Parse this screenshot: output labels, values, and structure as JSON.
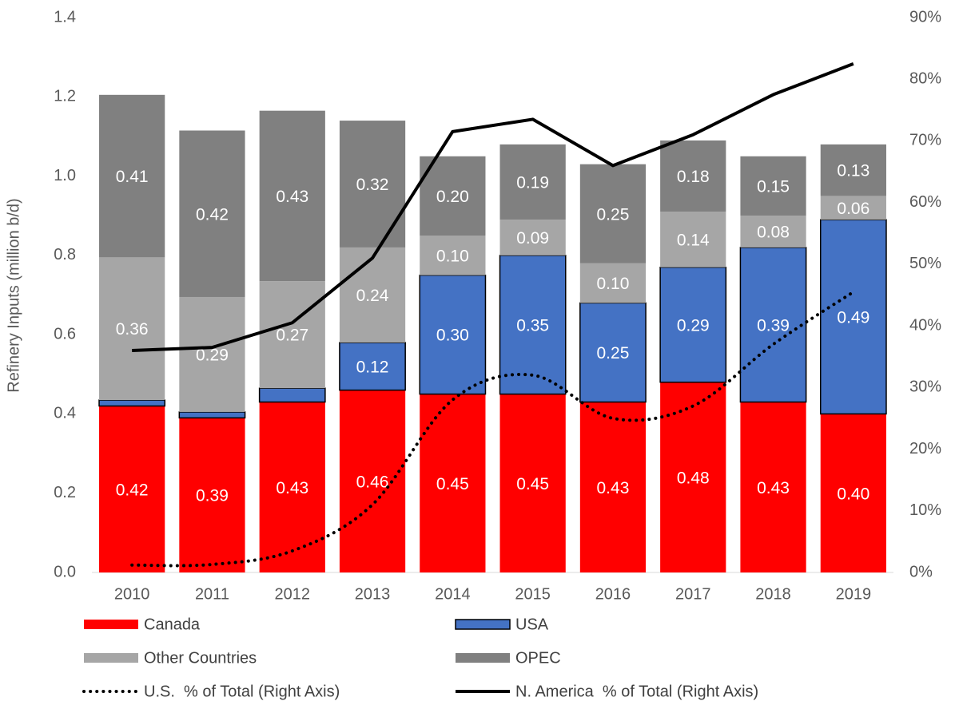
{
  "chart_data": {
    "type": "bar",
    "stacked": true,
    "y_label": "Refinery Inputs (million b/d)",
    "categories": [
      "2010",
      "2011",
      "2012",
      "2013",
      "2014",
      "2015",
      "2016",
      "2017",
      "2018",
      "2019"
    ],
    "ylim": [
      0,
      1.4
    ],
    "yticks": [
      {
        "value": 0,
        "label": "0.0"
      },
      0.2,
      0.4,
      0.6,
      0.8,
      {
        "value": 1,
        "label": "1.0"
      },
      1.2,
      1.4
    ],
    "y2lim": [
      0,
      90
    ],
    "y2ticks": [
      {
        "value": 0,
        "label": "0%"
      },
      {
        "value": 10,
        "label": "10%"
      },
      {
        "value": 20,
        "label": "20%"
      },
      {
        "value": 30,
        "label": "30%"
      },
      {
        "value": 40,
        "label": "40%"
      },
      {
        "value": 50,
        "label": "50%"
      },
      {
        "value": 60,
        "label": "60%"
      },
      {
        "value": 70,
        "label": "70%"
      },
      {
        "value": 80,
        "label": "80%"
      },
      {
        "value": 90,
        "label": "90%"
      }
    ],
    "series": [
      {
        "name": "Canada",
        "color": "#ff0000",
        "values": [
          0.42,
          0.39,
          0.43,
          0.46,
          0.45,
          0.45,
          0.43,
          0.48,
          0.43,
          0.4
        ],
        "value_labels": [
          "0.42",
          "0.39",
          "0.43",
          "0.46",
          "0.45",
          "0.45",
          "0.43",
          "0.48",
          "0.43",
          "0.40"
        ]
      },
      {
        "name": "USA",
        "color": "#4472c4",
        "border": "#000000",
        "values": [
          0.015,
          0.015,
          0.035,
          0.12,
          0.3,
          0.35,
          0.25,
          0.29,
          0.39,
          0.49
        ],
        "value_labels": [
          null,
          null,
          null,
          "0.12",
          "0.30",
          "0.35",
          "0.25",
          "0.29",
          "0.39",
          "0.49"
        ]
      },
      {
        "name": "Other Countries",
        "color": "#a6a6a6",
        "values": [
          0.36,
          0.29,
          0.27,
          0.24,
          0.1,
          0.09,
          0.1,
          0.14,
          0.08,
          0.06
        ],
        "value_labels": [
          "0.36",
          "0.29",
          "0.27",
          "0.24",
          "0.10",
          "0.09",
          "0.10",
          "0.14",
          "0.08",
          "0.06"
        ]
      },
      {
        "name": "OPEC",
        "color": "#808080",
        "values": [
          0.41,
          0.42,
          0.43,
          0.32,
          0.2,
          0.19,
          0.25,
          0.18,
          0.15,
          0.13
        ],
        "value_labels": [
          "0.41",
          "0.42",
          "0.43",
          "0.32",
          "0.20",
          "0.19",
          "0.25",
          "0.18",
          "0.15",
          "0.13"
        ]
      },
      {
        "name": "U.S.  % of Total (Right Axis)",
        "type": "line",
        "axis": "y2",
        "color": "#000000",
        "dotted": true,
        "smooth": true,
        "values": [
          1.2,
          1.3,
          3.5,
          11,
          28,
          32,
          25,
          27,
          37,
          45.5
        ]
      },
      {
        "name": "N. America  % of Total (Right Axis)",
        "type": "line",
        "axis": "y2",
        "color": "#000000",
        "values": [
          36,
          36.5,
          40.5,
          51,
          71.5,
          73.5,
          66,
          71,
          77.5,
          82.5
        ]
      }
    ],
    "legend": "bottom"
  }
}
